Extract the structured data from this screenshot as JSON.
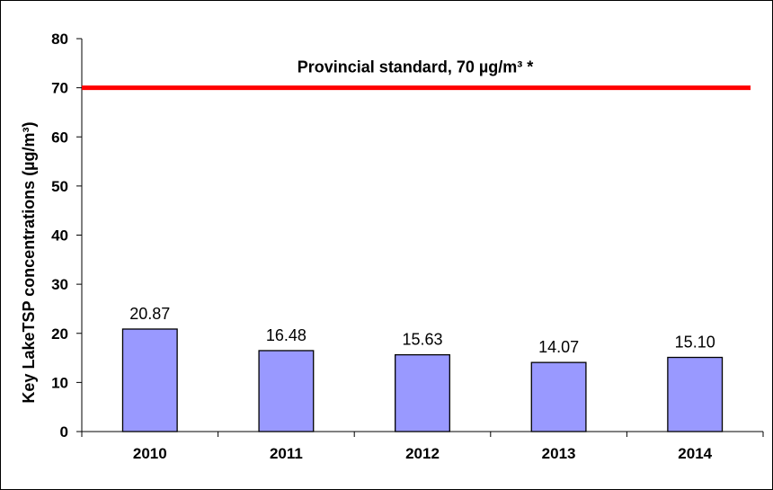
{
  "chart_data": {
    "type": "bar",
    "categories": [
      "2010",
      "2011",
      "2012",
      "2013",
      "2014"
    ],
    "values": [
      20.87,
      16.48,
      15.63,
      14.07,
      15.1
    ],
    "data_labels": [
      "20.87",
      "16.48",
      "15.63",
      "14.07",
      "15.10"
    ],
    "ylabel": "Key LakeTSP concentrations (µg/m³)",
    "ylim": [
      0,
      80
    ],
    "yticks": [
      0,
      10,
      20,
      30,
      40,
      50,
      60,
      70,
      80
    ],
    "grid": false,
    "bar_color": "#9999ff",
    "reference_line": {
      "value": 70,
      "label": "Provincial standard, 70 µg/m³ *",
      "color": "#ff0000"
    }
  }
}
